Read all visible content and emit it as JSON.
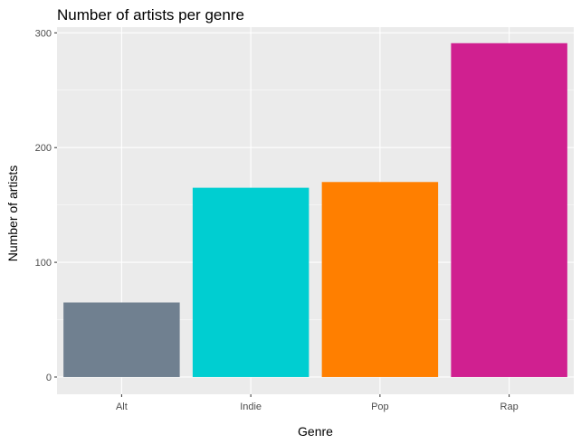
{
  "chart_data": {
    "type": "bar",
    "title": "Number of artists per genre",
    "xlabel": "Genre",
    "ylabel": "Number of artists",
    "categories": [
      "Alt",
      "Indie",
      "Pop",
      "Rap"
    ],
    "values": [
      65,
      165,
      170,
      291
    ],
    "colors": [
      "#708090",
      "#00CED1",
      "#FF7F00",
      "#D02090"
    ],
    "ylim": [
      0,
      300
    ],
    "yticks": [
      "0",
      "100",
      "200",
      "300"
    ],
    "grid": true,
    "legend": "none",
    "panel_background": "#EBEBEB",
    "grid_color": "#FFFFFF"
  }
}
